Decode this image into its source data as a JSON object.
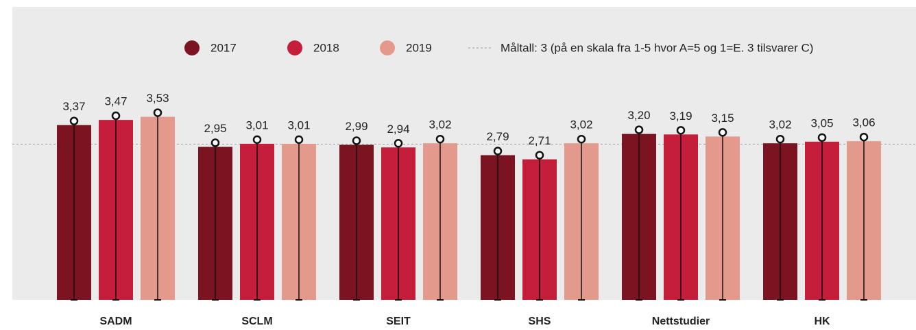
{
  "chart_data": {
    "type": "bar",
    "categories": [
      "SADM",
      "SCLM",
      "SEIT",
      "SHS",
      "Nettstudier",
      "HK"
    ],
    "series": [
      {
        "name": "2017",
        "color": "#7b1420",
        "values": [
          3.37,
          2.95,
          2.99,
          2.79,
          3.2,
          3.02
        ],
        "value_labels": [
          "3,37",
          "2,95",
          "2,99",
          "2,79",
          "3,20",
          "3,02"
        ]
      },
      {
        "name": "2018",
        "color": "#c41e3a",
        "values": [
          3.47,
          3.01,
          2.94,
          2.71,
          3.19,
          3.05
        ],
        "value_labels": [
          "3,47",
          "3,01",
          "2,94",
          "2,71",
          "3,19",
          "3,05"
        ]
      },
      {
        "name": "2019",
        "color": "#e39a8c",
        "values": [
          3.53,
          3.01,
          3.02,
          3.02,
          3.15,
          3.06
        ],
        "value_labels": [
          "3,53",
          "3,01",
          "3,02",
          "3,02",
          "3,15",
          "3,06"
        ]
      }
    ],
    "target": {
      "value": 3,
      "label": "Måltall: 3 (på en skala fra 1-5 hvor A=5 og 1=E. 3 tilsvarer C)"
    },
    "ylim": [
      0,
      5.65
    ],
    "grid": false
  }
}
